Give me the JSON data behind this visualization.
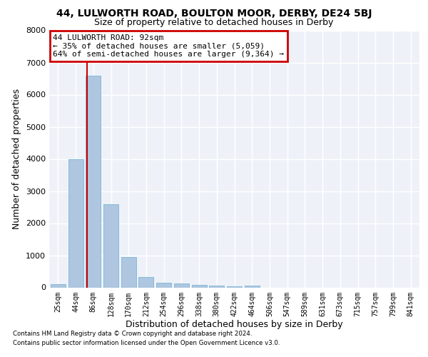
{
  "title": "44, LULWORTH ROAD, BOULTON MOOR, DERBY, DE24 5BJ",
  "subtitle": "Size of property relative to detached houses in Derby",
  "xlabel": "Distribution of detached houses by size in Derby",
  "ylabel": "Number of detached properties",
  "footnote1": "Contains HM Land Registry data © Crown copyright and database right 2024.",
  "footnote2": "Contains public sector information licensed under the Open Government Licence v3.0.",
  "bin_labels": [
    "25sqm",
    "44sqm",
    "86sqm",
    "128sqm",
    "170sqm",
    "212sqm",
    "254sqm",
    "296sqm",
    "338sqm",
    "380sqm",
    "422sqm",
    "464sqm",
    "506sqm",
    "547sqm",
    "589sqm",
    "631sqm",
    "673sqm",
    "715sqm",
    "757sqm",
    "799sqm",
    "841sqm"
  ],
  "bar_heights": [
    100,
    4000,
    6600,
    2600,
    950,
    325,
    140,
    130,
    80,
    60,
    30,
    50,
    0,
    0,
    0,
    0,
    0,
    0,
    0,
    0,
    0
  ],
  "bar_color": "#aec6df",
  "bar_edge_color": "#6aaed6",
  "property_label": "44 LULWORTH ROAD: 92sqm",
  "pct_smaller_text": "← 35% of detached houses are smaller (5,059)",
  "pct_larger_text": "64% of semi-detached houses are larger (9,364) →",
  "vline_color": "#cc0000",
  "annotation_box_edgecolor": "#cc0000",
  "ylim": [
    0,
    8000
  ],
  "background_color": "#eef2f8",
  "grid_color": "#ffffff",
  "title_fontsize": 10,
  "subtitle_fontsize": 9,
  "axis_label_fontsize": 9,
  "tick_fontsize": 7,
  "annotation_fontsize": 8,
  "vline_x_bin": 2,
  "vline_x_offset": -0.35
}
